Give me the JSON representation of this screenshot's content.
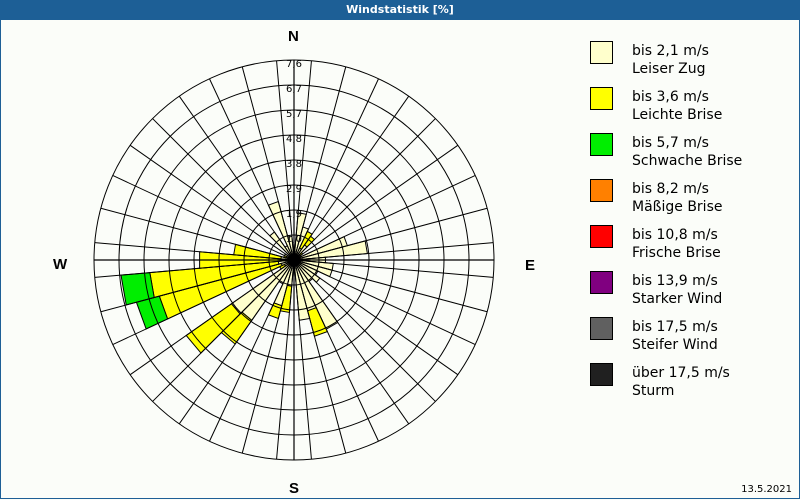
{
  "title": "Windstatistik [%]",
  "date": "13.5.2021",
  "compass": {
    "n": "N",
    "e": "E",
    "s": "S",
    "w": "W"
  },
  "legend": [
    {
      "speed": "bis 2,1 m/s",
      "name": "Leiser Zug",
      "color": "#ffffcc"
    },
    {
      "speed": "bis 3,6 m/s",
      "name": "Leichte Brise",
      "color": "#ffff00"
    },
    {
      "speed": "bis 5,7 m/s",
      "name": "Schwache Brise",
      "color": "#00ee00"
    },
    {
      "speed": "bis 8,2 m/s",
      "name": "Mäßige Brise",
      "color": "#ff8000"
    },
    {
      "speed": "bis 10,8 m/s",
      "name": "Frische Brise",
      "color": "#ff0000"
    },
    {
      "speed": "bis 13,9 m/s",
      "name": "Starker Wind",
      "color": "#800080"
    },
    {
      "speed": "bis 17,5 m/s",
      "name": "Steifer Wind",
      "color": "#606060"
    },
    {
      "speed": "über 17,5 m/s",
      "name": "Sturm",
      "color": "#202020"
    }
  ],
  "chart_data": {
    "type": "wind-rose",
    "title": "Windstatistik [%]",
    "unit": "%",
    "ring_labels": [
      "1,0",
      "1,9",
      "2,9",
      "3,8",
      "4,8",
      "5,7",
      "6,7",
      "7,6"
    ],
    "rmax": 7.6,
    "sector_width_deg": 10,
    "series_names": [
      "bis 2,1 m/s",
      "bis 3,6 m/s",
      "bis 5,7 m/s"
    ],
    "sectors": [
      {
        "dir": 0,
        "values": [
          0.3,
          0,
          0
        ]
      },
      {
        "dir": 10,
        "values": [
          1.8,
          0,
          0
        ]
      },
      {
        "dir": 20,
        "values": [
          1.3,
          0,
          0
        ]
      },
      {
        "dir": 30,
        "values": [
          0.5,
          0.7,
          0
        ]
      },
      {
        "dir": 40,
        "values": [
          0.7,
          0.4,
          0
        ]
      },
      {
        "dir": 50,
        "values": [
          0.3,
          0.1,
          0
        ]
      },
      {
        "dir": 60,
        "values": [
          0.3,
          0,
          0
        ]
      },
      {
        "dir": 70,
        "values": [
          2.1,
          0,
          0
        ]
      },
      {
        "dir": 80,
        "values": [
          2.8,
          0,
          0
        ]
      },
      {
        "dir": 90,
        "values": [
          1.2,
          0,
          0
        ]
      },
      {
        "dir": 100,
        "values": [
          1.5,
          0,
          0
        ]
      },
      {
        "dir": 110,
        "values": [
          1.5,
          0,
          0
        ]
      },
      {
        "dir": 120,
        "values": [
          1.0,
          0,
          0
        ]
      },
      {
        "dir": 130,
        "values": [
          1.2,
          0,
          0
        ]
      },
      {
        "dir": 140,
        "values": [
          1.0,
          0,
          0
        ]
      },
      {
        "dir": 150,
        "values": [
          2.9,
          0,
          0
        ]
      },
      {
        "dir": 160,
        "values": [
          2.0,
          1.0,
          0
        ]
      },
      {
        "dir": 170,
        "values": [
          2.3,
          0,
          0
        ]
      },
      {
        "dir": 180,
        "values": [
          0.4,
          0,
          0
        ]
      },
      {
        "dir": 190,
        "values": [
          1.0,
          1.0,
          0
        ]
      },
      {
        "dir": 200,
        "values": [
          1.8,
          0.5,
          0
        ]
      },
      {
        "dir": 210,
        "values": [
          1.0,
          0,
          0
        ]
      },
      {
        "dir": 220,
        "values": [
          2.8,
          1.1,
          0
        ]
      },
      {
        "dir": 230,
        "values": [
          2.9,
          2.1,
          0
        ]
      },
      {
        "dir": 240,
        "values": [
          0.4,
          0.2,
          0
        ]
      },
      {
        "dir": 250,
        "values": [
          0.5,
          4.8,
          0.9
        ]
      },
      {
        "dir": 260,
        "values": [
          0.6,
          4.9,
          1.1
        ]
      },
      {
        "dir": 270,
        "values": [
          0.4,
          3.2,
          0
        ]
      },
      {
        "dir": 280,
        "values": [
          0.5,
          1.8,
          0
        ]
      },
      {
        "dir": 290,
        "values": [
          0.3,
          0.1,
          0
        ]
      },
      {
        "dir": 300,
        "values": [
          0.4,
          0,
          0
        ]
      },
      {
        "dir": 310,
        "values": [
          0.2,
          0,
          0
        ]
      },
      {
        "dir": 320,
        "values": [
          1.3,
          0,
          0
        ]
      },
      {
        "dir": 330,
        "values": [
          0.6,
          0,
          0
        ]
      },
      {
        "dir": 340,
        "values": [
          2.3,
          0,
          0
        ]
      },
      {
        "dir": 350,
        "values": [
          0.9,
          0,
          0
        ]
      }
    ]
  }
}
